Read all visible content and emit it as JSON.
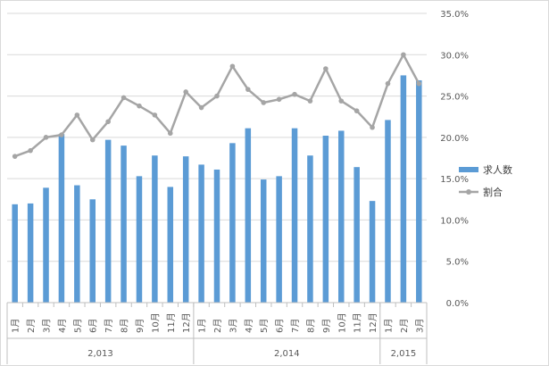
{
  "chart_data": {
    "type": "bar-line-combo",
    "categories": [
      "1月",
      "2月",
      "3月",
      "4月",
      "5月",
      "6月",
      "7月",
      "8月",
      "9月",
      "10月",
      "11月",
      "12月",
      "1月",
      "2月",
      "3月",
      "4月",
      "5月",
      "6月",
      "7月",
      "8月",
      "9月",
      "10月",
      "11月",
      "12月",
      "1月",
      "2月",
      "3月"
    ],
    "years": [
      {
        "label": "2,013",
        "count": 12
      },
      {
        "label": "2,014",
        "count": 12
      },
      {
        "label": "2,015",
        "count": 3
      }
    ],
    "series": [
      {
        "name": "求人数",
        "kind": "bar",
        "color": "#5b9bd5",
        "values": [
          11.9,
          12.0,
          13.9,
          20.4,
          14.2,
          12.5,
          19.7,
          19.0,
          15.3,
          17.8,
          14.0,
          17.7,
          16.7,
          16.1,
          19.3,
          21.1,
          14.9,
          15.3,
          21.1,
          17.8,
          20.2,
          20.8,
          16.4,
          12.3,
          22.1,
          27.5,
          26.9
        ]
      },
      {
        "name": "割合",
        "kind": "line",
        "color": "#a5a5a5",
        "values": [
          17.7,
          18.4,
          20.0,
          20.3,
          22.7,
          19.7,
          21.9,
          24.8,
          23.8,
          22.7,
          20.5,
          25.5,
          23.6,
          25.0,
          28.6,
          25.8,
          24.2,
          24.6,
          25.2,
          24.4,
          28.3,
          24.4,
          23.2,
          21.2,
          26.5,
          30.0,
          26.5
        ]
      }
    ],
    "y_axis": {
      "position": "right",
      "ylim": [
        0,
        35
      ],
      "step": 5,
      "tick_labels": [
        "0.0%",
        "5.0%",
        "10.0%",
        "15.0%",
        "20.0%",
        "25.0%",
        "30.0%",
        "35.0%"
      ]
    },
    "grid": true,
    "legend": {
      "placement": "right"
    }
  }
}
